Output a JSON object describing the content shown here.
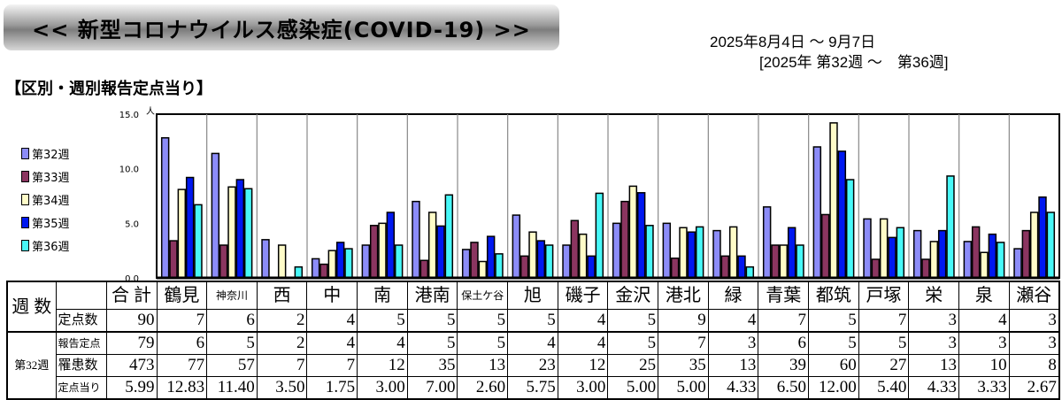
{
  "header": {
    "title": "<<  新型コロナウイルス感染症(COVID-19)  >>",
    "period": "2025年8月4日 ～ 9月7日",
    "weeks": "[2025年 第32週 ～　第36週]",
    "subtitle": "【区別・週別報告定点当り】"
  },
  "chart_data": {
    "type": "bar",
    "title": "区別・週別報告定点当り",
    "ylabel": "人",
    "ylim": [
      0,
      15
    ],
    "yticks": [
      "0.0",
      "5.0",
      "10.0",
      "15.0"
    ],
    "legend_position": "left",
    "categories": [
      "鶴見",
      "神奈川",
      "西",
      "中",
      "南",
      "港南",
      "保土ケ谷",
      "旭",
      "磯子",
      "金沢",
      "港北",
      "緑",
      "青葉",
      "都筑",
      "戸塚",
      "栄",
      "泉",
      "瀬谷"
    ],
    "series": [
      {
        "name": "第32週",
        "color": "#8c8cf8",
        "values": [
          12.83,
          11.4,
          3.5,
          1.75,
          3.0,
          7.0,
          2.6,
          5.75,
          3.0,
          5.0,
          5.0,
          4.33,
          6.5,
          12.0,
          5.4,
          4.33,
          3.33,
          2.67
        ]
      },
      {
        "name": "第33週",
        "color": "#8b3560",
        "values": [
          3.4,
          3.0,
          0,
          1.25,
          4.8,
          1.6,
          3.25,
          2.0,
          5.25,
          7.0,
          1.8,
          2.0,
          3.0,
          5.8,
          1.7,
          1.7,
          4.67,
          4.33
        ]
      },
      {
        "name": "第34週",
        "color": "#fffcc8",
        "values": [
          8.1,
          8.33,
          3.0,
          2.5,
          5.0,
          6.0,
          1.5,
          4.2,
          4.0,
          8.4,
          4.6,
          4.67,
          3.0,
          14.2,
          5.4,
          3.33,
          2.33,
          6.0
        ]
      },
      {
        "name": "第35週",
        "color": "#0018f0",
        "values": [
          9.2,
          9.0,
          0,
          3.25,
          6.0,
          4.75,
          3.8,
          3.4,
          2.0,
          7.8,
          4.2,
          2.0,
          4.6,
          11.6,
          3.7,
          4.33,
          4.0,
          7.4
        ]
      },
      {
        "name": "第36週",
        "color": "#48f8f8",
        "values": [
          6.7,
          8.17,
          1.0,
          2.67,
          3.0,
          7.6,
          2.2,
          3.0,
          7.75,
          4.8,
          4.67,
          1.0,
          3.0,
          9.0,
          4.6,
          9.33,
          3.25,
          6.0
        ]
      }
    ]
  },
  "table": {
    "corner": "週 数",
    "total_header": "合 計",
    "districts": [
      "鶴見",
      "神奈川",
      "西",
      "中",
      "南",
      "港南",
      "保土ケ谷",
      "旭",
      "磯子",
      "金沢",
      "港北",
      "緑",
      "青葉",
      "都筑",
      "戸塚",
      "栄",
      "泉",
      "瀬谷"
    ],
    "sites": {
      "label": "定点数",
      "total": "90",
      "values": [
        "7",
        "6",
        "2",
        "4",
        "5",
        "5",
        "5",
        "5",
        "4",
        "5",
        "9",
        "4",
        "7",
        "5",
        "7",
        "3",
        "4",
        "3"
      ]
    },
    "week_label": "第32週",
    "rows": [
      {
        "label": "報告定点",
        "total": "79",
        "values": [
          "6",
          "5",
          "2",
          "4",
          "4",
          "5",
          "5",
          "4",
          "4",
          "5",
          "7",
          "3",
          "6",
          "5",
          "5",
          "3",
          "3",
          "3"
        ]
      },
      {
        "label": "罹患数",
        "total": "473",
        "values": [
          "77",
          "57",
          "7",
          "7",
          "12",
          "35",
          "13",
          "23",
          "12",
          "25",
          "35",
          "13",
          "39",
          "60",
          "27",
          "13",
          "10",
          "8"
        ]
      },
      {
        "label": "定点当り",
        "total": "5.99",
        "values": [
          "12.83",
          "11.40",
          "3.50",
          "1.75",
          "3.00",
          "7.00",
          "2.60",
          "5.75",
          "3.00",
          "5.00",
          "5.00",
          "4.33",
          "6.50",
          "12.00",
          "5.40",
          "4.33",
          "3.33",
          "2.67"
        ]
      }
    ]
  }
}
